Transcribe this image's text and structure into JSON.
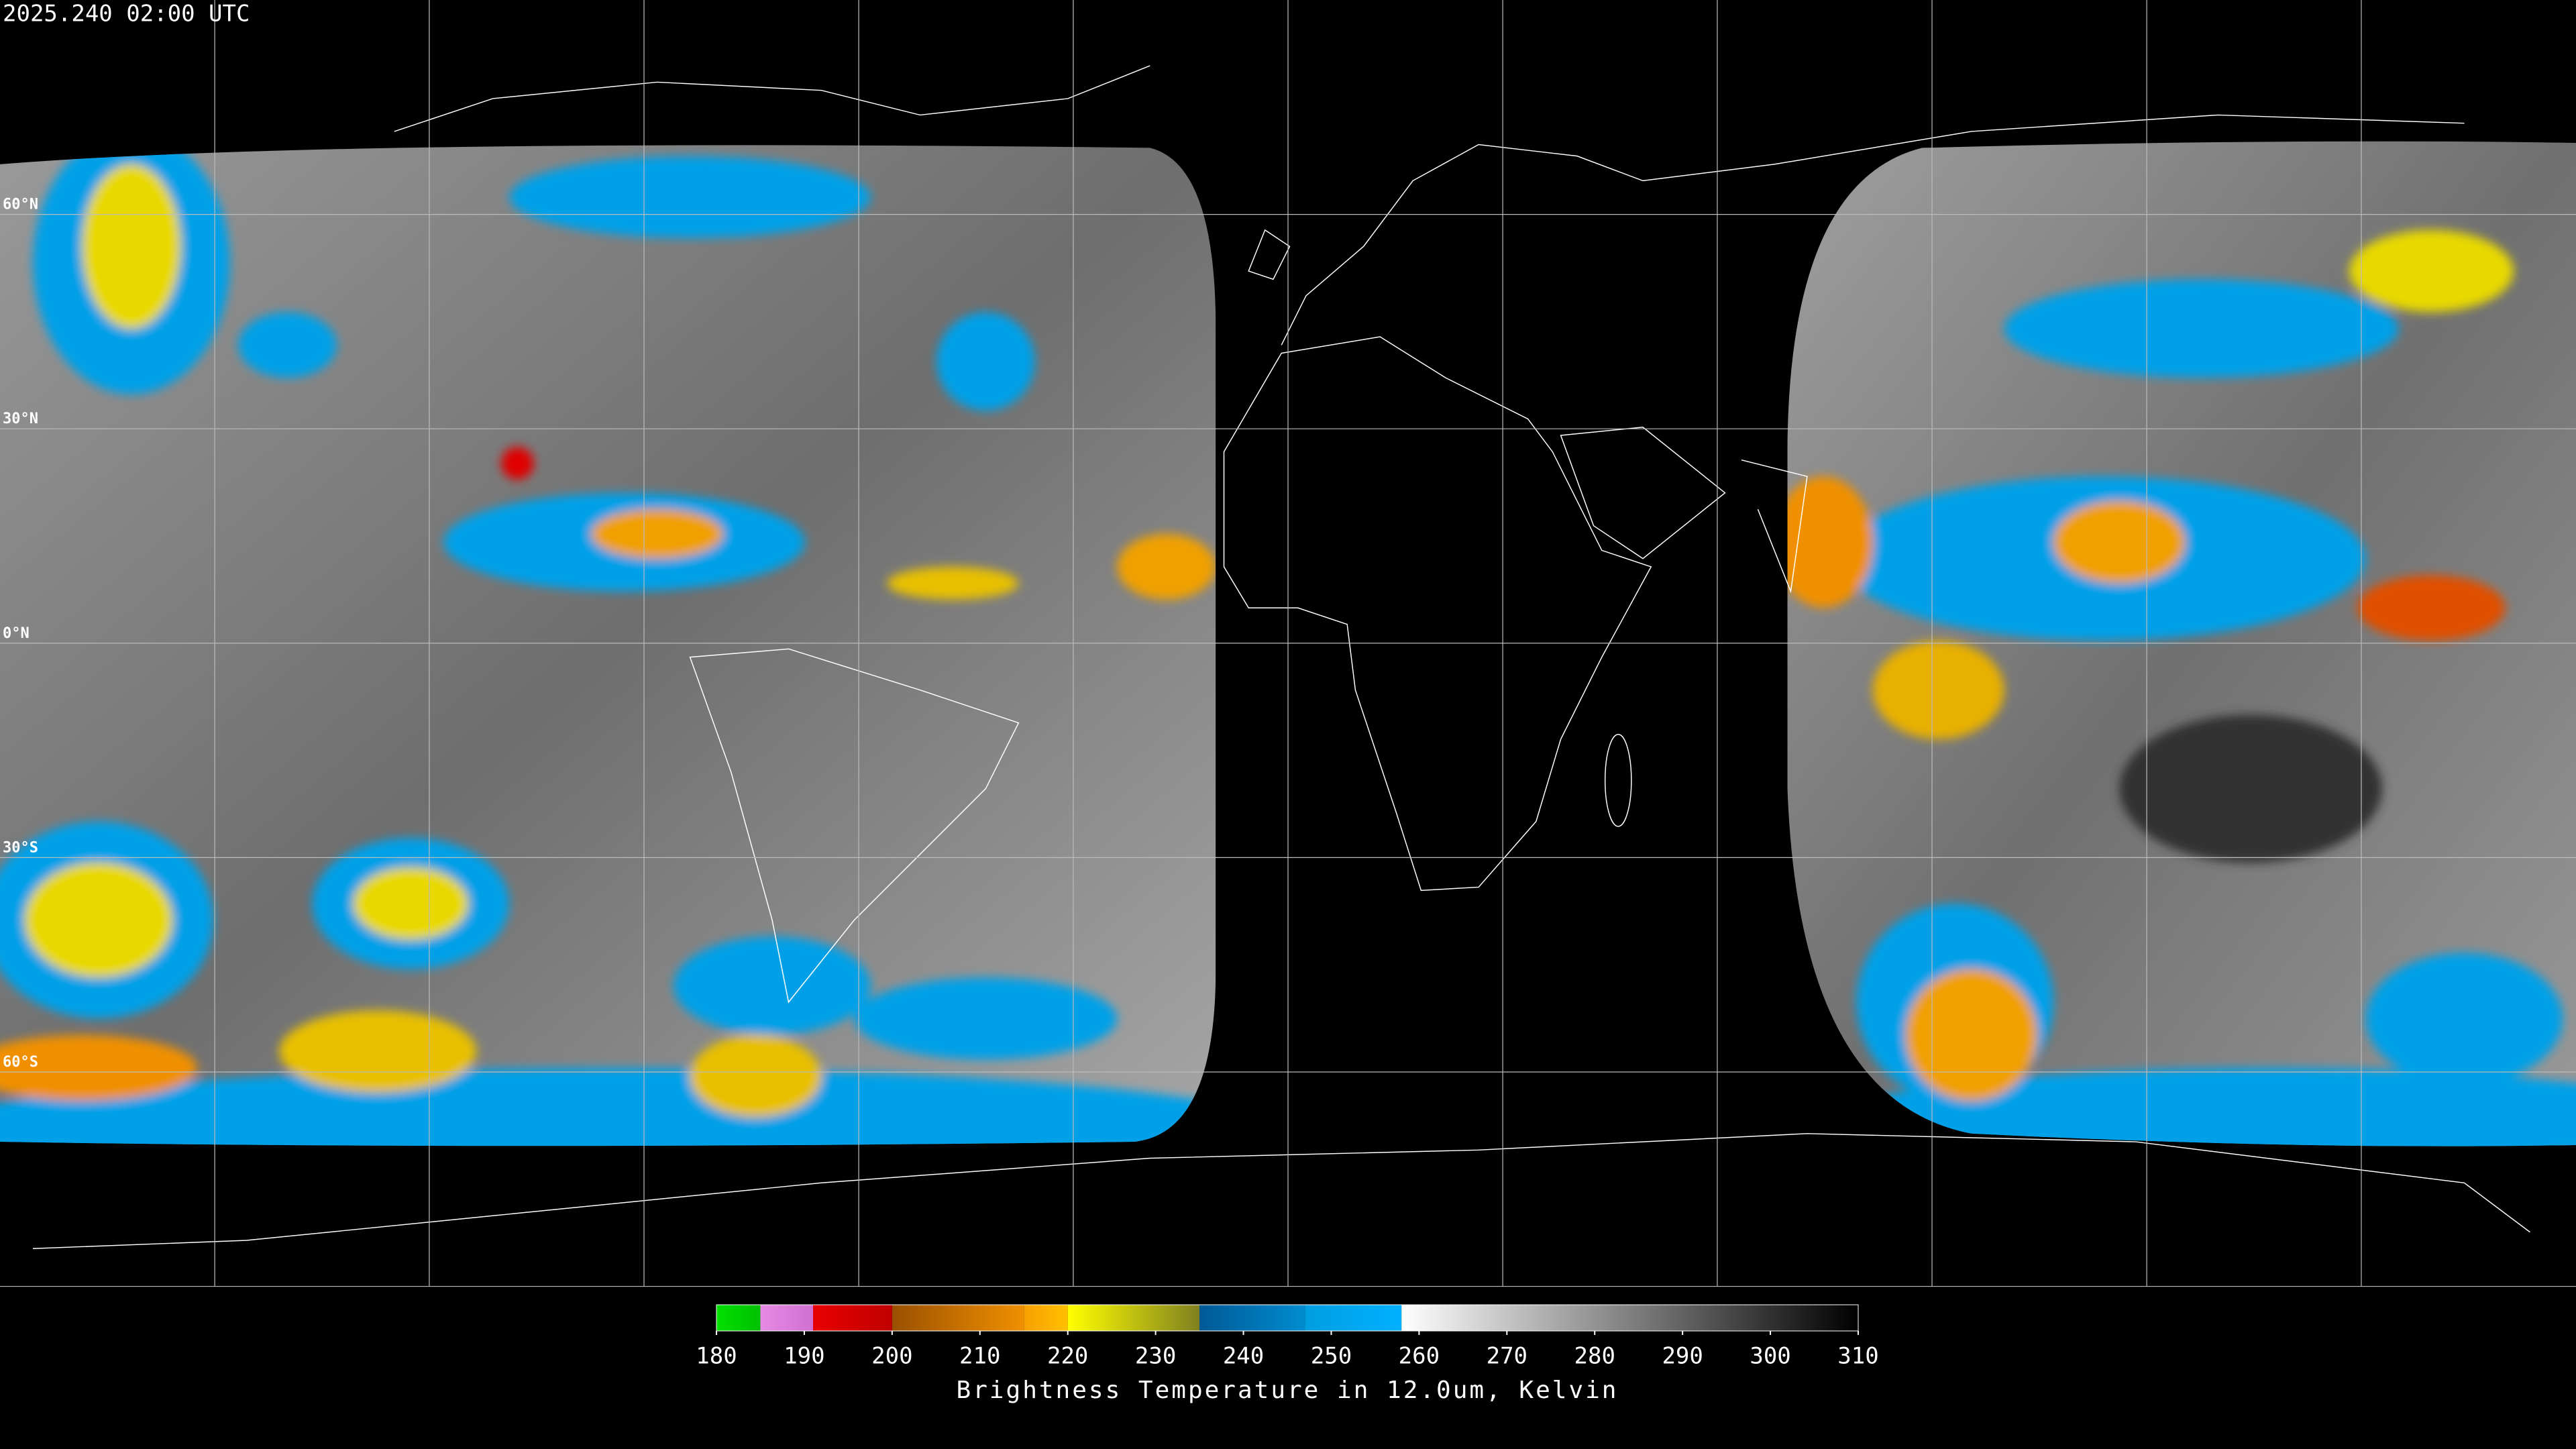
{
  "timestamp": "2025.240 02:00 UTC",
  "latitude_labels": [
    "60°N",
    "30°N",
    "0°N",
    "30°S",
    "60°S"
  ],
  "colorbar": {
    "title": "Brightness Temperature in 12.0um, Kelvin",
    "lim": [
      180,
      310
    ],
    "ticks": [
      180,
      190,
      200,
      210,
      220,
      230,
      240,
      250,
      260,
      270,
      280,
      290,
      300,
      310
    ],
    "segments": [
      {
        "from": 180,
        "to": 185,
        "colors": [
          "#00e000",
          "#00c000"
        ]
      },
      {
        "from": 185,
        "to": 191,
        "colors": [
          "#e68ae6",
          "#d070d0"
        ]
      },
      {
        "from": 191,
        "to": 200,
        "colors": [
          "#e80000",
          "#c00000"
        ]
      },
      {
        "from": 200,
        "to": 215,
        "colors": [
          "#9a5000",
          "#f09000"
        ]
      },
      {
        "from": 215,
        "to": 220,
        "colors": [
          "#f8a000",
          "#ffc000"
        ]
      },
      {
        "from": 220,
        "to": 235,
        "colors": [
          "#ffff00",
          "#808020"
        ]
      },
      {
        "from": 235,
        "to": 247,
        "colors": [
          "#005a96",
          "#008cd0"
        ]
      },
      {
        "from": 247,
        "to": 258,
        "colors": [
          "#009ee0",
          "#00b0ff"
        ]
      },
      {
        "from": 258,
        "to": 310,
        "colors": [
          "#ffffff",
          "#000000"
        ]
      }
    ]
  }
}
